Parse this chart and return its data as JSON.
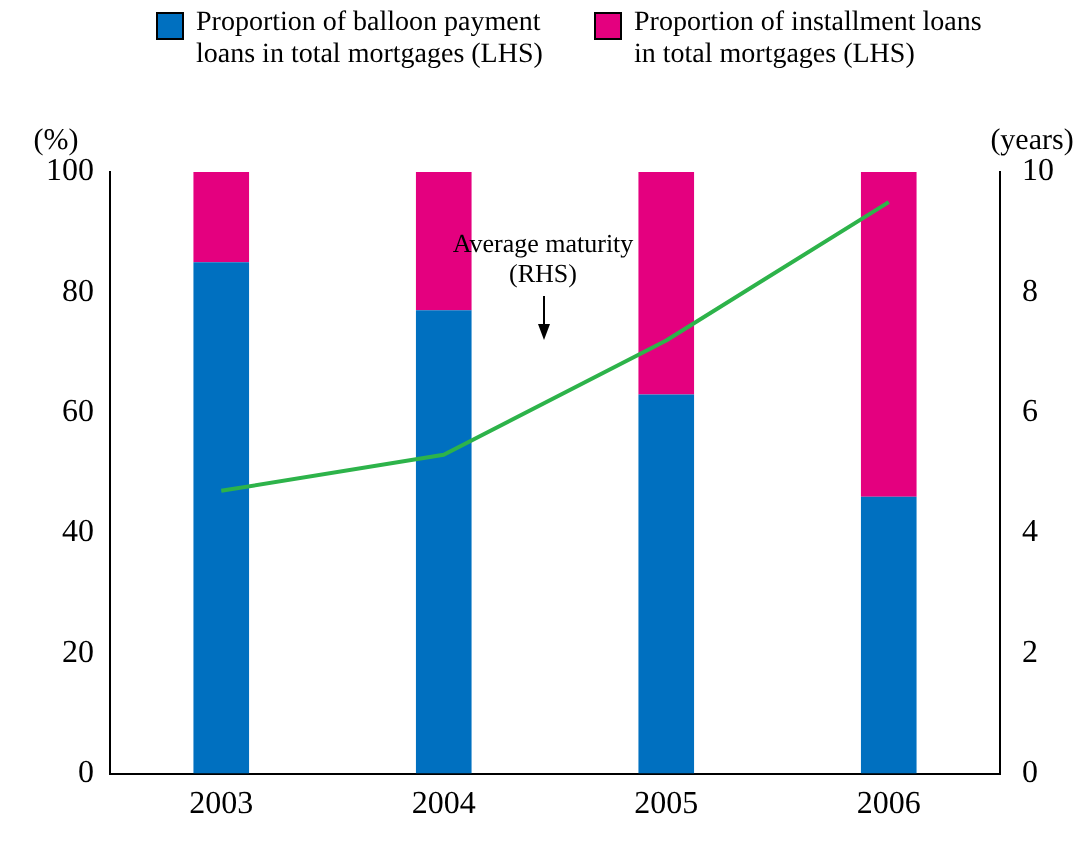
{
  "chart_data": {
    "type": "bar",
    "stacked": true,
    "categories": [
      "2003",
      "2004",
      "2005",
      "2006"
    ],
    "series": [
      {
        "name": "Proportion of balloon payment loans in total mortgages (LHS)",
        "color": "#0070c0",
        "values": [
          85,
          77,
          63,
          46
        ]
      },
      {
        "name": "Proportion of installment loans in total mortgages (LHS)",
        "color": "#e4007f",
        "values": [
          15,
          23,
          37,
          54
        ]
      },
      {
        "type": "line",
        "axis": "y2",
        "color": "#2db34a",
        "values": [
          4.7,
          5.3,
          7.2,
          9.5
        ]
      }
    ],
    "ylabel": "(%)",
    "y2label": "(years)",
    "ylim": [
      0,
      100
    ],
    "yticks": [
      0,
      20,
      40,
      60,
      80,
      100
    ],
    "y2lim": [
      0,
      10
    ],
    "y2ticks": [
      0,
      2,
      4,
      6,
      8,
      10
    ],
    "annotations": [
      "Average maturity (RHS)"
    ],
    "legend": "top",
    "grid": false,
    "marker": "none",
    "line_style": "solid"
  }
}
